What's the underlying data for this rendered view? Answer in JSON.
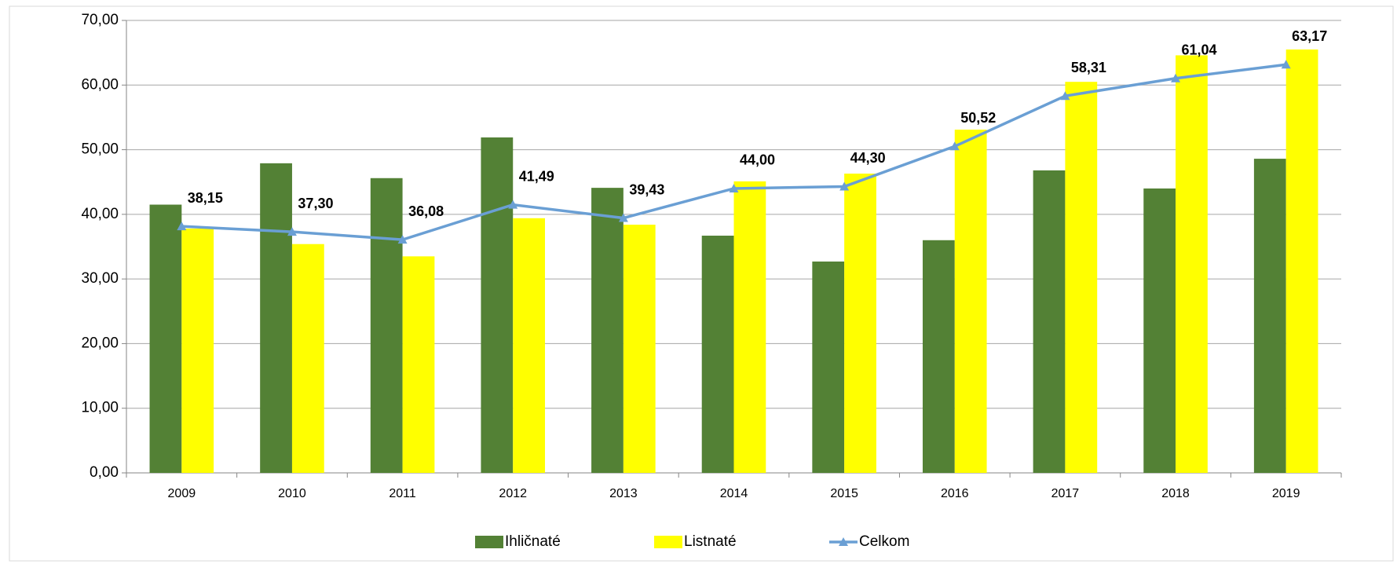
{
  "chart_data": {
    "type": "bar_line",
    "categories": [
      "2009",
      "2010",
      "2011",
      "2012",
      "2013",
      "2014",
      "2015",
      "2016",
      "2017",
      "2018",
      "2019"
    ],
    "series": [
      {
        "name": "Ihličnaté",
        "color": "#538135",
        "kind": "bar",
        "values": [
          41.5,
          47.9,
          45.6,
          51.9,
          44.1,
          36.7,
          32.7,
          36.0,
          46.8,
          44.0,
          48.6
        ]
      },
      {
        "name": "Listnaté",
        "color": "#ffff00",
        "kind": "bar",
        "values": [
          37.8,
          35.4,
          33.5,
          39.4,
          38.4,
          45.1,
          46.3,
          53.1,
          60.5,
          64.6,
          65.5
        ]
      },
      {
        "name": "Celkom",
        "color": "#6a9fd4",
        "kind": "line",
        "values": [
          38.15,
          37.3,
          36.08,
          41.49,
          39.43,
          44.0,
          44.3,
          50.52,
          58.31,
          61.04,
          63.17
        ],
        "value_labels": [
          "38,15",
          "37,30",
          "36,08",
          "41,49",
          "39,43",
          "44,00",
          "44,30",
          "50,52",
          "58,31",
          "61,04",
          "63,17"
        ]
      }
    ],
    "ylim": [
      0,
      70
    ],
    "yticks": [
      {
        "value": 0,
        "label": "0,00"
      },
      {
        "value": 10,
        "label": "10,00"
      },
      {
        "value": 20,
        "label": "20,00"
      },
      {
        "value": 30,
        "label": "30,00"
      },
      {
        "value": 40,
        "label": "40,00"
      },
      {
        "value": 50,
        "label": "50,00"
      },
      {
        "value": 60,
        "label": "60,00"
      },
      {
        "value": 70,
        "label": "70,00"
      }
    ],
    "grid": true,
    "legend": "bottom"
  }
}
